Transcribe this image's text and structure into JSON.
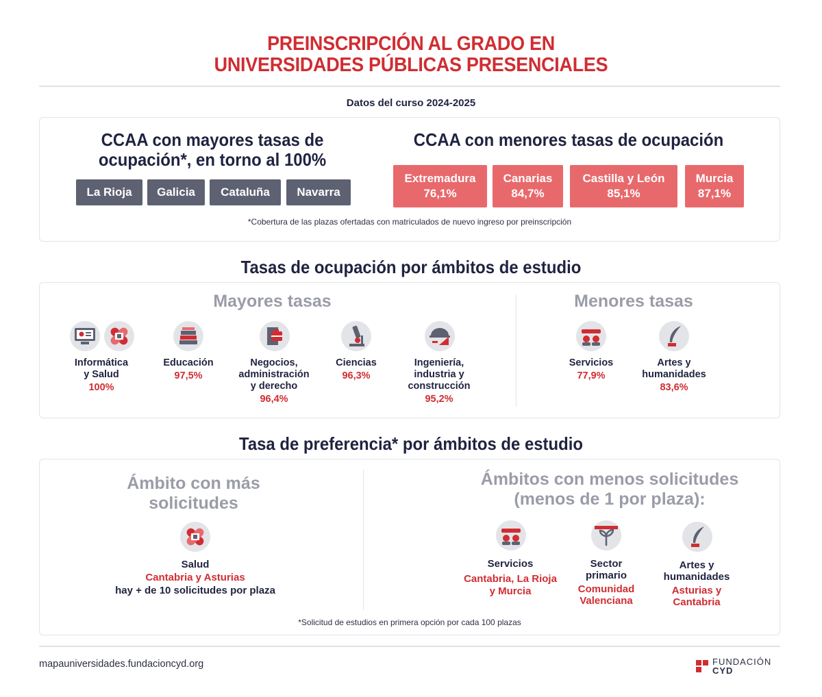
{
  "header": {
    "title_line1": "PREINSCRIPCIÓN AL GRADO EN",
    "title_line2": "UNIVERSIDADES PÚBLICAS PRESENCIALES",
    "subtitle": "Datos del curso 2024-2025"
  },
  "ccaa": {
    "high_title_line1": "CCAA con mayores tasas de",
    "high_title_line2": "ocupación*, en torno al 100%",
    "high_regions": [
      "La Rioja",
      "Galicia",
      "Cataluña",
      "Navarra"
    ],
    "low_title": "CCAA con menores tasas de ocupación",
    "low_regions": [
      {
        "name": "Extremadura",
        "value": "76,1%"
      },
      {
        "name": "Canarias",
        "value": "84,7%"
      },
      {
        "name": "Castilla y León",
        "value": "85,1%"
      },
      {
        "name": "Murcia",
        "value": "87,1%"
      }
    ],
    "note": "*Cobertura de las plazas ofertadas con matriculados de nuevo ingreso por preinscripción"
  },
  "ocupacion": {
    "section_title": "Tasas de ocupación por ámbitos de estudio",
    "mayores_title": "Mayores tasas",
    "menores_title": "Menores tasas",
    "mayores": [
      {
        "l1": "Informática",
        "l2": "y Salud",
        "l3": "",
        "value": "100%",
        "icon": "computer-and-health-icons"
      },
      {
        "l1": "Educación",
        "l2": "",
        "l3": "",
        "value": "97,5%",
        "icon": "books-icon"
      },
      {
        "l1": "Negocios,",
        "l2": "administración",
        "l3": "y derecho",
        "value": "96,4%",
        "icon": "briefcase-icon"
      },
      {
        "l1": "Ciencias",
        "l2": "",
        "l3": "",
        "value": "96,3%",
        "icon": "microscope-icon"
      },
      {
        "l1": "Ingeniería,",
        "l2": "industria y",
        "l3": "construcción",
        "value": "95,2%",
        "icon": "engineering-icon"
      }
    ],
    "menores": [
      {
        "l1": "Servicios",
        "l2": "",
        "value": "77,9%",
        "icon": "services-icon"
      },
      {
        "l1": "Artes y",
        "l2": "humanidades",
        "value": "83,6%",
        "icon": "quill-icon"
      }
    ]
  },
  "preferencia": {
    "section_title": "Tasa de preferencia* por ámbitos de estudio",
    "mas_title_line1": "Ámbito con más",
    "mas_title_line2": "solicitudes",
    "mas_item": {
      "label": "Salud",
      "regions": "Cantabria y Asturias",
      "detail": "hay + de 10 solicitudes por plaza",
      "icon": "health-icon"
    },
    "menos_title_line1": "Ámbitos con menos solicitudes",
    "menos_title_line2": "(menos de 1 por plaza):",
    "menos_items": [
      {
        "l1": "Servicios",
        "l2": "",
        "r1": "Cantabria, La Rioja",
        "r2": "y Murcia",
        "icon": "services-icon"
      },
      {
        "l1": "Sector",
        "l2": "primario",
        "r1": "Comunidad",
        "r2": "Valenciana",
        "icon": "plant-icon"
      },
      {
        "l1": "Artes y",
        "l2": "humanidades",
        "r1": "Asturias y",
        "r2": "Cantabria",
        "icon": "quill-icon"
      }
    ],
    "note": "*Solicitud de estudios en primera opción por cada 100 plazas"
  },
  "footer": {
    "url": "mapauniversidades.fundacioncyd.org",
    "logo_line1": "FUNDACIÓN",
    "logo_line2": "CYD"
  },
  "colors": {
    "red": "#d02d32",
    "chip_red": "#e8696c",
    "chip_gray": "#5d6172",
    "navy": "#1f2340",
    "grey_title": "#9a9ca8"
  }
}
